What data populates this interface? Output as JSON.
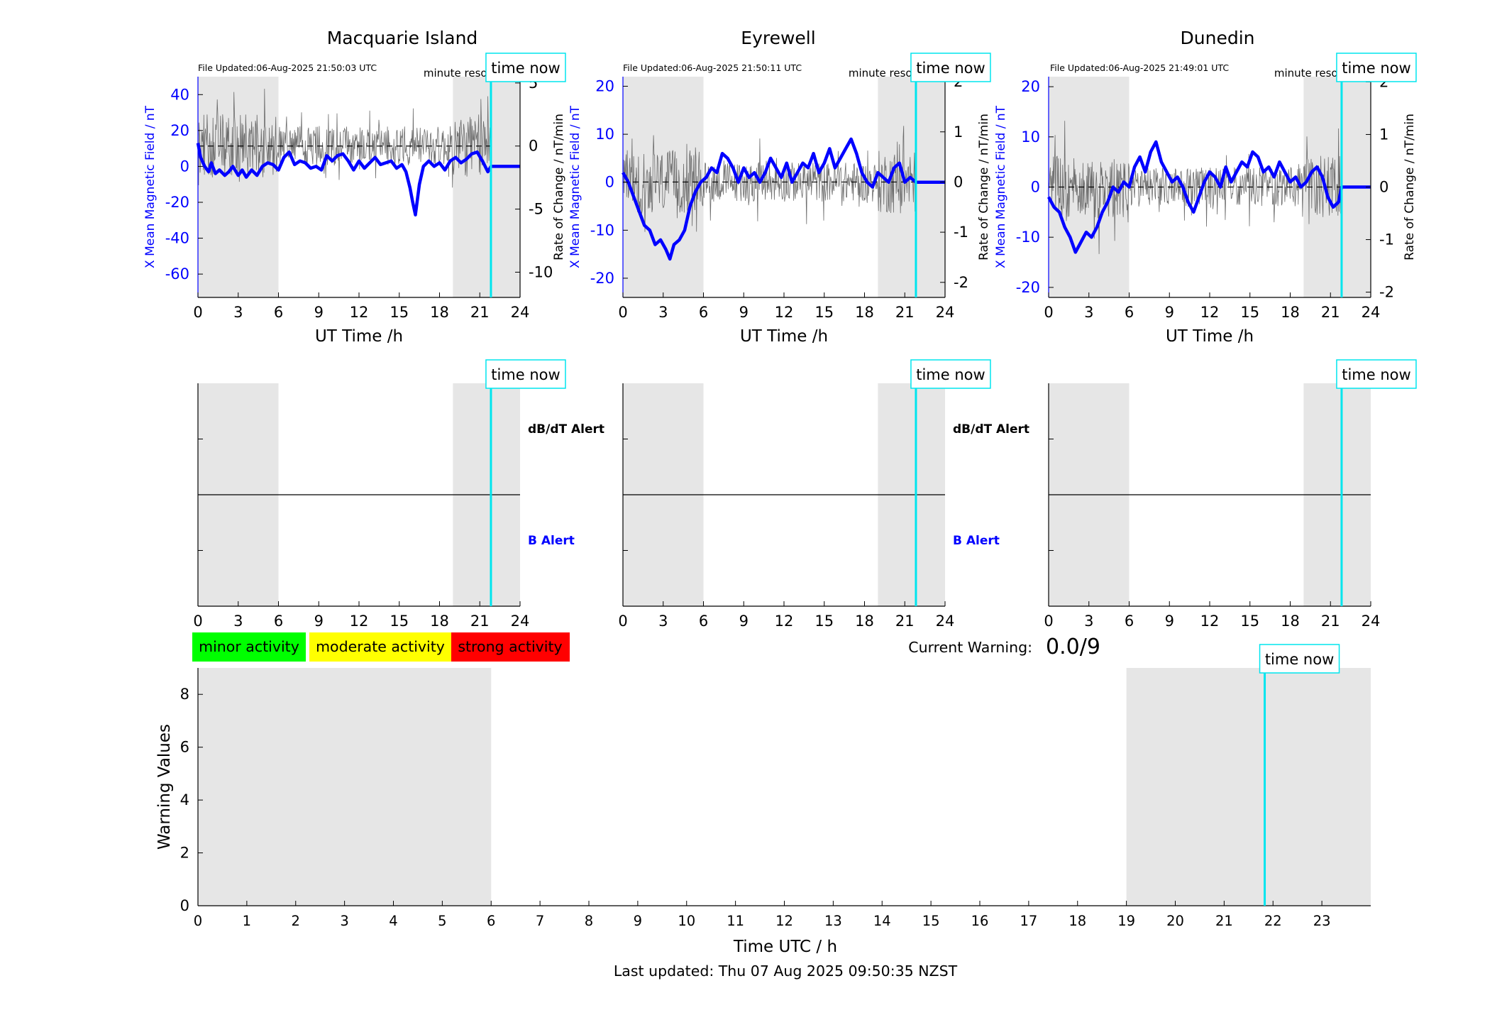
{
  "last_updated": "Last updated: Thu 07 Aug 2025 09:50:35 NZST",
  "current_warning": {
    "label": "Current Warning:",
    "value": "0.0/9"
  },
  "time_now_label": "time now",
  "legend_items": [
    {
      "label": "minor activity",
      "color": "#00ff00"
    },
    {
      "label": "moderate activity",
      "color": "#ffff00"
    },
    {
      "label": "strong activity",
      "color": "#ff0000"
    }
  ],
  "colors": {
    "field": "#0000ff",
    "shade": "#e6e6e6",
    "time_now": "#00e5ee",
    "rate": "#555555"
  },
  "chart_data": [
    {
      "type": "line",
      "station": "Macquarie Island",
      "file_updated": "File Updated:06-Aug-2025 21:50:03 UTC",
      "resolution_label": "minute resolution",
      "xlabel": "UT Time /h",
      "ylabel_left": "X Mean Magnetic Field / nT",
      "ylabel_right": "Rate of Change / nT/min",
      "xlim": [
        0,
        24
      ],
      "xticks": [
        0,
        3,
        6,
        9,
        12,
        15,
        18,
        21,
        24
      ],
      "ylim_left": [
        -73,
        50
      ],
      "yticks_left": [
        -60,
        -40,
        -20,
        0,
        20,
        40
      ],
      "ylim_right": [
        -12,
        5.5
      ],
      "yticks_right": [
        -10,
        -5,
        0,
        5
      ],
      "shaded_ranges": [
        [
          0,
          6
        ],
        [
          19,
          24
        ]
      ],
      "time_now": 21.83,
      "series": [
        {
          "x": [
            0,
            0.2,
            0.5,
            0.8,
            1.0,
            1.3,
            1.6,
            2.0,
            2.3,
            2.6,
            3.0,
            3.3,
            3.6,
            4.0,
            4.4,
            4.8,
            5.2,
            5.6,
            6.0,
            6.4,
            6.8,
            7.2,
            7.6,
            8.0,
            8.4,
            8.8,
            9.2,
            9.6,
            10.0,
            10.4,
            10.8,
            11.2,
            11.6,
            12.0,
            12.4,
            12.8,
            13.2,
            13.6,
            14.0,
            14.4,
            14.8,
            15.2,
            15.5,
            15.8,
            16.0,
            16.2,
            16.5,
            16.8,
            17.2,
            17.6,
            18.0,
            18.4,
            18.8,
            19.2,
            19.6,
            20.0,
            20.4,
            20.8,
            21.2,
            21.6,
            21.83,
            22.2,
            22.8,
            23.4,
            24
          ],
          "y": [
            13,
            5,
            0,
            -3,
            2,
            -4,
            -2,
            -5,
            -3,
            0,
            -5,
            -2,
            -6,
            -2,
            -5,
            0,
            2,
            1,
            -2,
            5,
            8,
            1,
            3,
            2,
            -1,
            0,
            -2,
            6,
            3,
            6,
            7,
            3,
            -2,
            3,
            -1,
            2,
            5,
            1,
            2,
            3,
            -1,
            1,
            -3,
            -12,
            -20,
            -27,
            -10,
            0,
            3,
            0,
            2,
            -2,
            3,
            5,
            2,
            4,
            7,
            8,
            3,
            -3,
            0,
            0,
            0,
            0,
            0
          ]
        }
      ]
    },
    {
      "type": "line",
      "station": "Eyrewell",
      "file_updated": "File Updated:06-Aug-2025 21:50:11 UTC",
      "resolution_label": "minute resolution",
      "xlabel": "UT Time /h",
      "ylabel_left": "X Mean Magnetic Field / nT",
      "ylabel_right": "Rate of Change / nT/min",
      "xlim": [
        0,
        24
      ],
      "xticks": [
        0,
        3,
        6,
        9,
        12,
        15,
        18,
        21,
        24
      ],
      "ylim_left": [
        -24,
        22
      ],
      "yticks_left": [
        -20,
        -10,
        0,
        10,
        20
      ],
      "ylim_right": [
        -2.3,
        2.1
      ],
      "yticks_right": [
        -2,
        -1,
        0,
        1,
        2
      ],
      "shaded_ranges": [
        [
          0,
          6
        ],
        [
          19,
          24
        ]
      ],
      "time_now": 21.83,
      "series": [
        {
          "x": [
            0,
            0.4,
            0.8,
            1.2,
            1.6,
            2.0,
            2.4,
            2.8,
            3.2,
            3.5,
            3.8,
            4.2,
            4.6,
            5.0,
            5.4,
            5.8,
            6.2,
            6.6,
            7.0,
            7.4,
            7.8,
            8.2,
            8.6,
            9.0,
            9.4,
            9.8,
            10.2,
            10.6,
            11.0,
            11.4,
            11.8,
            12.2,
            12.6,
            13.0,
            13.4,
            13.8,
            14.2,
            14.6,
            15.0,
            15.4,
            15.8,
            16.2,
            16.6,
            17.0,
            17.4,
            17.8,
            18.2,
            18.6,
            19.0,
            19.4,
            19.8,
            20.2,
            20.6,
            21.0,
            21.4,
            21.83,
            22.4,
            23.2,
            24
          ],
          "y": [
            2,
            0,
            -3,
            -6,
            -9,
            -10,
            -13,
            -12,
            -14,
            -16,
            -13,
            -12,
            -10,
            -5,
            -2,
            0,
            1,
            3,
            2,
            6,
            5,
            3,
            0,
            3,
            1,
            2,
            0,
            2,
            5,
            3,
            1,
            4,
            0,
            2,
            4,
            3,
            6,
            2,
            4,
            7,
            3,
            5,
            7,
            9,
            6,
            2,
            0,
            -1,
            2,
            1,
            0,
            3,
            4,
            0,
            1,
            0,
            0,
            0,
            0
          ]
        }
      ]
    },
    {
      "type": "line",
      "station": "Dunedin",
      "file_updated": "File Updated:06-Aug-2025 21:49:01 UTC",
      "resolution_label": "minute resolution",
      "xlabel": "UT Time /h",
      "ylabel_left": "X Mean Magnetic Field / nT",
      "ylabel_right": "Rate of Change / nT/min",
      "xlim": [
        0,
        24
      ],
      "xticks": [
        0,
        3,
        6,
        9,
        12,
        15,
        18,
        21,
        24
      ],
      "ylim_left": [
        -22,
        22
      ],
      "yticks_left": [
        -20,
        -10,
        0,
        10,
        20
      ],
      "ylim_right": [
        -2.1,
        2.1
      ],
      "yticks_right": [
        -2,
        -1,
        0,
        1,
        2
      ],
      "shaded_ranges": [
        [
          0,
          6
        ],
        [
          19,
          24
        ]
      ],
      "time_now": 21.83,
      "series": [
        {
          "x": [
            0,
            0.4,
            0.8,
            1.2,
            1.6,
            2.0,
            2.4,
            2.8,
            3.2,
            3.6,
            4.0,
            4.4,
            4.8,
            5.2,
            5.6,
            6.0,
            6.4,
            6.8,
            7.2,
            7.6,
            8.0,
            8.4,
            8.8,
            9.2,
            9.6,
            10.0,
            10.4,
            10.8,
            11.2,
            11.6,
            12.0,
            12.4,
            12.8,
            13.2,
            13.6,
            14.0,
            14.4,
            14.8,
            15.2,
            15.6,
            16.0,
            16.4,
            16.8,
            17.2,
            17.6,
            18.0,
            18.4,
            18.8,
            19.2,
            19.6,
            20.0,
            20.4,
            20.8,
            21.2,
            21.6,
            21.83,
            22.4,
            23.2,
            24
          ],
          "y": [
            -2,
            -4,
            -5,
            -8,
            -10,
            -13,
            -11,
            -9,
            -10,
            -8,
            -5,
            -3,
            0,
            -1,
            1,
            0,
            4,
            6,
            3,
            7,
            9,
            5,
            3,
            1,
            2,
            0,
            -3,
            -5,
            -2,
            1,
            3,
            2,
            0,
            4,
            1,
            3,
            5,
            4,
            7,
            6,
            3,
            4,
            2,
            5,
            3,
            1,
            2,
            0,
            1,
            3,
            4,
            2,
            -2,
            -4,
            -3,
            0,
            0,
            0,
            0
          ]
        }
      ]
    },
    {
      "type": "line",
      "panel": "Macquarie Island alert",
      "dbdt_alert_label": "dB/dT Alert",
      "b_alert_label": "B Alert",
      "xlim": [
        0,
        24
      ],
      "xticks": [
        0,
        3,
        6,
        9,
        12,
        15,
        18,
        21,
        24
      ],
      "ylim": [
        0,
        4
      ],
      "yticks": [
        1,
        2,
        3
      ],
      "shaded_ranges": [
        [
          0,
          6
        ],
        [
          19,
          24
        ]
      ],
      "time_now": 21.83,
      "series": [
        {
          "x": [
            0,
            24
          ],
          "y": [
            2,
            2
          ]
        }
      ]
    },
    {
      "type": "line",
      "panel": "Eyrewell alert",
      "dbdt_alert_label": "dB/dT Alert",
      "b_alert_label": "B Alert",
      "xlim": [
        0,
        24
      ],
      "xticks": [
        0,
        3,
        6,
        9,
        12,
        15,
        18,
        21,
        24
      ],
      "ylim": [
        0,
        4
      ],
      "yticks": [
        1,
        2,
        3
      ],
      "shaded_ranges": [
        [
          0,
          6
        ],
        [
          19,
          24
        ]
      ],
      "time_now": 21.83,
      "series": [
        {
          "x": [
            0,
            24
          ],
          "y": [
            2,
            2
          ]
        }
      ]
    },
    {
      "type": "line",
      "panel": "Dunedin alert",
      "xlim": [
        0,
        24
      ],
      "xticks": [
        0,
        3,
        6,
        9,
        12,
        15,
        18,
        21,
        24
      ],
      "ylim": [
        0,
        4
      ],
      "yticks": [
        1,
        2,
        3
      ],
      "shaded_ranges": [
        [
          0,
          6
        ],
        [
          19,
          24
        ]
      ],
      "time_now": 21.83,
      "series": [
        {
          "x": [
            0,
            24
          ],
          "y": [
            2,
            2
          ]
        }
      ]
    },
    {
      "type": "bar",
      "panel": "Warning values",
      "xlabel": "Time UTC / h",
      "ylabel": "Warning Values",
      "xlim": [
        0,
        24
      ],
      "xticks": [
        0,
        1,
        2,
        3,
        4,
        5,
        6,
        7,
        8,
        9,
        10,
        11,
        12,
        13,
        14,
        15,
        16,
        17,
        18,
        19,
        20,
        21,
        22,
        23
      ],
      "ylim": [
        0,
        9
      ],
      "yticks": [
        0,
        2,
        4,
        6,
        8
      ],
      "shaded_ranges": [
        [
          0,
          6
        ],
        [
          19,
          24
        ]
      ],
      "time_now": 21.83,
      "values": []
    }
  ]
}
